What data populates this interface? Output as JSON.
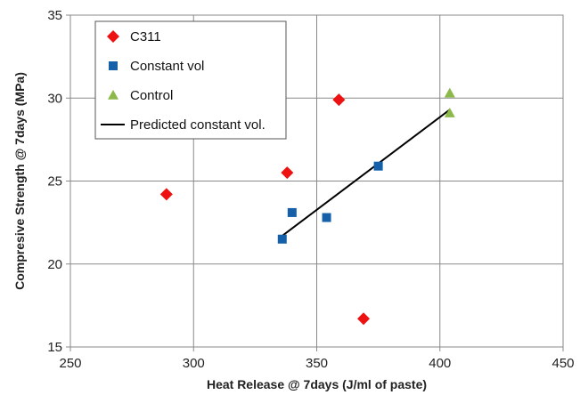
{
  "chart_data": {
    "type": "scatter",
    "title": "",
    "xlabel": "Heat Release @ 7days (J/ml of paste)",
    "ylabel": "Compresive Strength @ 7days (MPa)",
    "xlim": [
      250,
      450
    ],
    "ylim": [
      15,
      35
    ],
    "x_ticks": [
      250,
      300,
      350,
      400,
      450
    ],
    "y_ticks": [
      15,
      20,
      25,
      30,
      35
    ],
    "grid": true,
    "legend_position": "top-left",
    "series": [
      {
        "name": "C311",
        "marker": "diamond",
        "color": "#ee1111",
        "points": [
          {
            "x": 289,
            "y": 24.2
          },
          {
            "x": 338,
            "y": 25.5
          },
          {
            "x": 359,
            "y": 29.9
          },
          {
            "x": 369,
            "y": 16.7
          }
        ]
      },
      {
        "name": "Constant vol",
        "marker": "square",
        "color": "#1560a8",
        "points": [
          {
            "x": 336,
            "y": 21.5
          },
          {
            "x": 340,
            "y": 23.1
          },
          {
            "x": 354,
            "y": 22.8
          },
          {
            "x": 375,
            "y": 25.9
          }
        ]
      },
      {
        "name": "Control",
        "marker": "triangle",
        "color": "#8db94a",
        "points": [
          {
            "x": 404,
            "y": 30.3
          },
          {
            "x": 404,
            "y": 29.1
          }
        ]
      },
      {
        "name": "Predicted constant vol.",
        "type": "line",
        "color": "#000000",
        "points": [
          {
            "x": 336,
            "y": 21.7
          },
          {
            "x": 404,
            "y": 29.3
          }
        ]
      }
    ]
  }
}
